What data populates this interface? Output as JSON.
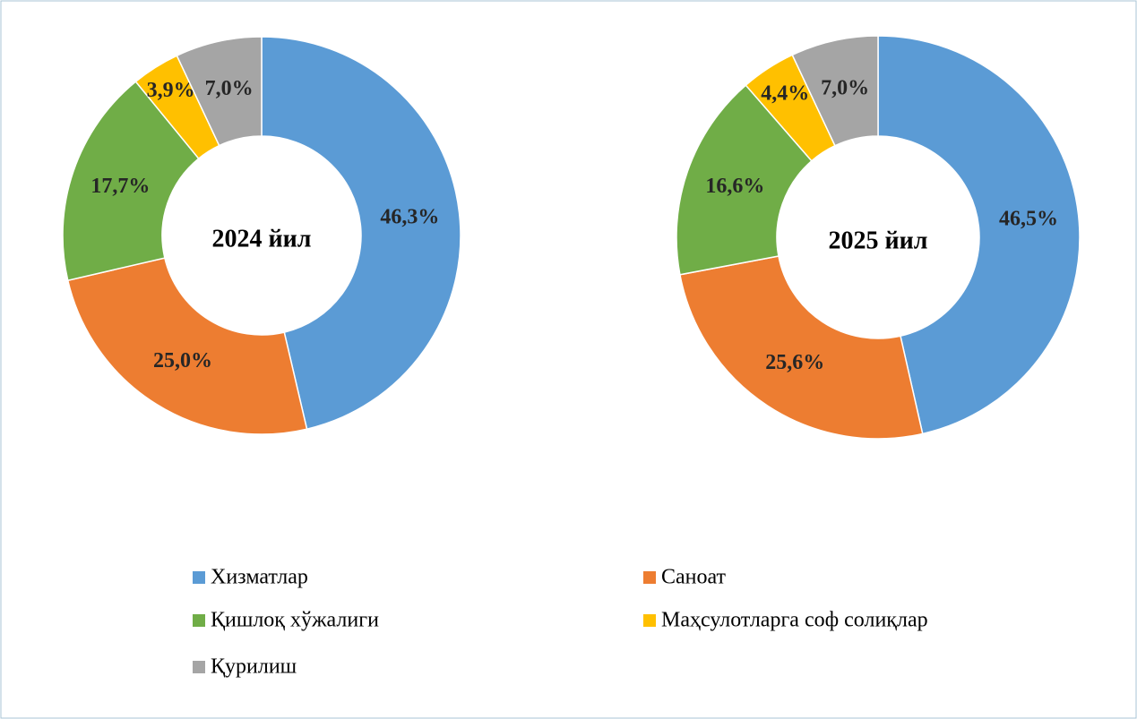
{
  "chart_data": [
    {
      "type": "pie",
      "title": "2024 йил",
      "values": [
        46.3,
        25.0,
        17.7,
        3.9,
        7.0
      ],
      "value_labels": [
        "46,3%",
        "25,0%",
        "17,7%",
        "3,9%",
        "7,0%"
      ]
    },
    {
      "type": "pie",
      "title": "2025 йил",
      "values": [
        46.5,
        25.6,
        16.6,
        4.4,
        7.0
      ],
      "value_labels": [
        "46,5%",
        "25,6%",
        "16,6%",
        "4,4%",
        "7,0%"
      ]
    }
  ],
  "legend": {
    "categories": [
      "Хизматлар",
      "Саноат",
      "Қишлоқ хўжалиги",
      "Маҳсулотларга соф солиқлар",
      "Қурилиш"
    ],
    "colors": [
      "#5b9bd5",
      "#ed7d31",
      "#70ad47",
      "#ffc000",
      "#a5a5a5"
    ]
  }
}
